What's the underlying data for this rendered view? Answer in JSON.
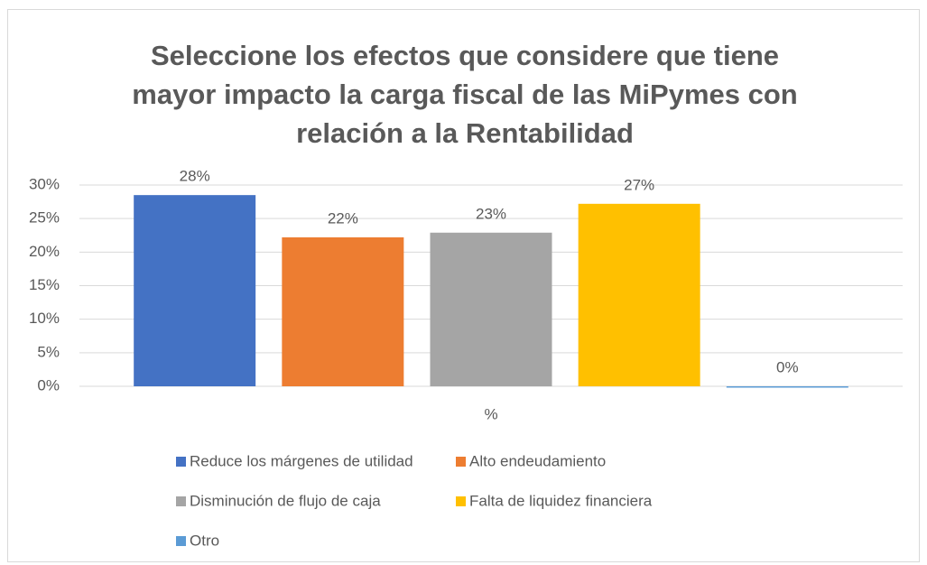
{
  "chart_data": {
    "type": "bar",
    "title": "Seleccione los efectos que considere que tiene mayor impacto la carga fiscal de las MiPymes con relación a la Rentabilidad",
    "categories": [
      "%"
    ],
    "series": [
      {
        "name": "Reduce los márgenes de utilidad",
        "color": "#4472c4",
        "values": [
          28.5
        ],
        "value_labels": [
          "28%"
        ]
      },
      {
        "name": "Alto endeudamiento",
        "color": "#ed7d31",
        "values": [
          22.2
        ],
        "value_labels": [
          "22%"
        ]
      },
      {
        "name": "Disminución de flujo de caja",
        "color": "#a5a5a5",
        "values": [
          22.9
        ],
        "value_labels": [
          "23%"
        ]
      },
      {
        "name": "Falta de liquidez financiera",
        "color": "#ffc000",
        "values": [
          27.2
        ],
        "value_labels": [
          "27%"
        ]
      },
      {
        "name": "Otro",
        "color": "#5b9bd5",
        "values": [
          0
        ],
        "value_labels": [
          "0%"
        ]
      }
    ],
    "ylim": [
      0,
      30
    ],
    "yticks": [
      {
        "value": 0,
        "label": "0%"
      },
      {
        "value": 5,
        "label": "5%"
      },
      {
        "value": 10,
        "label": "10%"
      },
      {
        "value": 15,
        "label": "15%"
      },
      {
        "value": 20,
        "label": "20%"
      },
      {
        "value": 25,
        "label": "25%"
      },
      {
        "value": 30,
        "label": "30%"
      }
    ],
    "grid": true,
    "legend": "bottom"
  }
}
